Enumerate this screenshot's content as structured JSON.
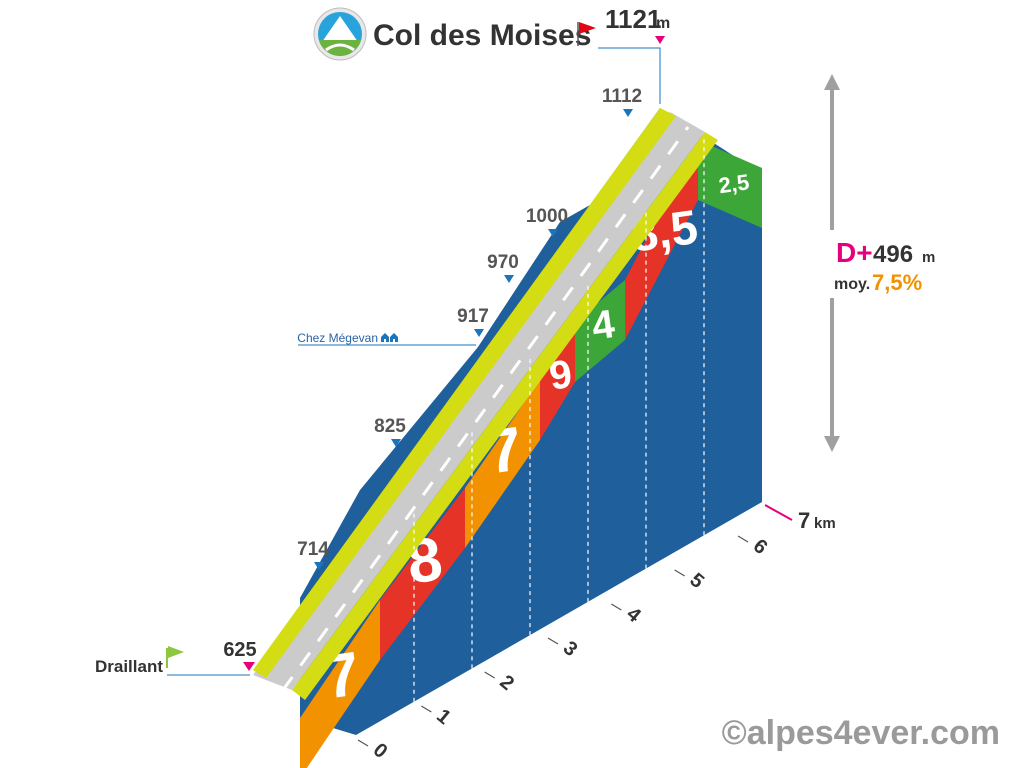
{
  "header": {
    "title": "Col des Moises",
    "summit_alt": "1121",
    "summit_unit": "m"
  },
  "start": {
    "name": "Draillant",
    "alt": "625"
  },
  "waypoint": {
    "name": "Chez Mégevan"
  },
  "stats": {
    "dplus_label": "D+",
    "dplus_value": "496",
    "dplus_unit": "m",
    "avg_label": "moy.",
    "avg_value": "7,5%"
  },
  "distance_label": "7",
  "distance_unit": "km",
  "watermark": "©alpes4ever.com",
  "chart_data": {
    "type": "area",
    "title": "Col des Moises",
    "xlabel": "km",
    "ylabel": "m",
    "x_ticks": [
      "0",
      "1",
      "2",
      "3",
      "4",
      "5",
      "6"
    ],
    "xlim": [
      0,
      7
    ],
    "altitude_points": [
      {
        "km": 0,
        "alt": 625
      },
      {
        "km": 1,
        "alt": 714
      },
      {
        "km": 2,
        "alt": 825
      },
      {
        "km": 3,
        "alt": 917
      },
      {
        "km": 3.6,
        "alt": 970
      },
      {
        "km": 4,
        "alt": 1000
      },
      {
        "km": 5.8,
        "alt": 1112
      },
      {
        "km": 7,
        "alt": 1121
      }
    ],
    "altitude_labels": [
      "714",
      "825",
      "917",
      "970",
      "1000",
      "1112"
    ],
    "segments": [
      {
        "km_start": 0,
        "km_end": 1,
        "gradient": "7",
        "color": "#f39200"
      },
      {
        "km_start": 1,
        "km_end": 2,
        "gradient": "8",
        "color": "#e53427"
      },
      {
        "km_start": 2,
        "km_end": 3,
        "gradient": "7",
        "color": "#f39200"
      },
      {
        "km_start": 3,
        "km_end": 3.5,
        "gradient": "9",
        "color": "#e53427"
      },
      {
        "km_start": 3.5,
        "km_end": 4,
        "gradient": "4",
        "color": "#3da639"
      },
      {
        "km_start": 4,
        "km_end": 6.5,
        "gradient": "8,5",
        "color": "#e53427"
      },
      {
        "km_start": 6.5,
        "km_end": 7,
        "gradient": "2,5",
        "color": "#3da639"
      }
    ]
  },
  "colors": {
    "side_blue": "#1e5f9c",
    "road_grey": "#cbcbcb",
    "verge_yellow": "#d4dc14",
    "summit_flag": "#e30613",
    "start_flag": "#8dc63f",
    "magenta": "#e6007e",
    "orange": "#f39200",
    "marker_blue": "#1a75bc"
  }
}
